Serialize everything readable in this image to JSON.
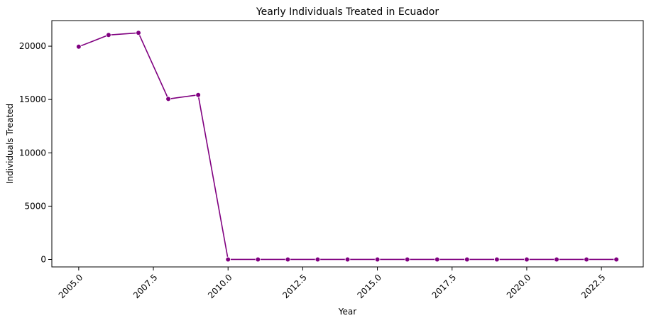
{
  "chart_data": {
    "type": "line",
    "title": "Yearly Individuals Treated in Ecuador",
    "xlabel": "Year",
    "ylabel": "Individuals Treated",
    "xlim": [
      2004.1,
      2023.9
    ],
    "ylim": [
      -700,
      22400
    ],
    "x_ticks": [
      2005.0,
      2007.5,
      2010.0,
      2012.5,
      2015.0,
      2017.5,
      2020.0,
      2022.5
    ],
    "x_tick_labels": [
      "2005.0",
      "2007.5",
      "2010.0",
      "2012.5",
      "2015.0",
      "2017.5",
      "2020.0",
      "2022.5"
    ],
    "y_ticks": [
      0,
      5000,
      10000,
      15000,
      20000
    ],
    "y_tick_labels": [
      "0",
      "5000",
      "10000",
      "15000",
      "20000"
    ],
    "grid": false,
    "legend": "none",
    "series": [
      {
        "color": "#800080",
        "marker": "circle",
        "x": [
          2005,
          2006,
          2007,
          2008,
          2009,
          2010,
          2011,
          2012,
          2013,
          2014,
          2015,
          2016,
          2017,
          2018,
          2019,
          2020,
          2021,
          2022,
          2023
        ],
        "y": [
          19950,
          21050,
          21250,
          15050,
          15430,
          0,
          0,
          0,
          0,
          0,
          0,
          0,
          0,
          0,
          0,
          0,
          0,
          0,
          0
        ]
      }
    ]
  }
}
